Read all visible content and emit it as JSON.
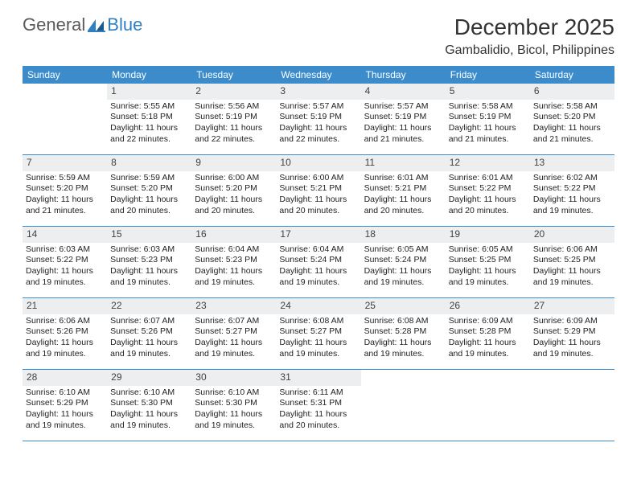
{
  "logo": {
    "general": "General",
    "blue": "Blue"
  },
  "title": "December 2025",
  "location": "Gambalidio, Bicol, Philippines",
  "colors": {
    "header_bg": "#3c8ccc",
    "header_text": "#ffffff",
    "daynum_bg": "#eceeef",
    "text": "#222222",
    "rule": "#3c8ccc",
    "logo_gray": "#5a5a5a",
    "logo_blue": "#2f7fc1"
  },
  "day_names": [
    "Sunday",
    "Monday",
    "Tuesday",
    "Wednesday",
    "Thursday",
    "Friday",
    "Saturday"
  ],
  "weeks": [
    [
      {
        "blank": true
      },
      {
        "n": "1",
        "sr": "Sunrise: 5:55 AM",
        "ss": "Sunset: 5:18 PM",
        "d1": "Daylight: 11 hours",
        "d2": "and 22 minutes."
      },
      {
        "n": "2",
        "sr": "Sunrise: 5:56 AM",
        "ss": "Sunset: 5:19 PM",
        "d1": "Daylight: 11 hours",
        "d2": "and 22 minutes."
      },
      {
        "n": "3",
        "sr": "Sunrise: 5:57 AM",
        "ss": "Sunset: 5:19 PM",
        "d1": "Daylight: 11 hours",
        "d2": "and 22 minutes."
      },
      {
        "n": "4",
        "sr": "Sunrise: 5:57 AM",
        "ss": "Sunset: 5:19 PM",
        "d1": "Daylight: 11 hours",
        "d2": "and 21 minutes."
      },
      {
        "n": "5",
        "sr": "Sunrise: 5:58 AM",
        "ss": "Sunset: 5:19 PM",
        "d1": "Daylight: 11 hours",
        "d2": "and 21 minutes."
      },
      {
        "n": "6",
        "sr": "Sunrise: 5:58 AM",
        "ss": "Sunset: 5:20 PM",
        "d1": "Daylight: 11 hours",
        "d2": "and 21 minutes."
      }
    ],
    [
      {
        "n": "7",
        "sr": "Sunrise: 5:59 AM",
        "ss": "Sunset: 5:20 PM",
        "d1": "Daylight: 11 hours",
        "d2": "and 21 minutes."
      },
      {
        "n": "8",
        "sr": "Sunrise: 5:59 AM",
        "ss": "Sunset: 5:20 PM",
        "d1": "Daylight: 11 hours",
        "d2": "and 20 minutes."
      },
      {
        "n": "9",
        "sr": "Sunrise: 6:00 AM",
        "ss": "Sunset: 5:20 PM",
        "d1": "Daylight: 11 hours",
        "d2": "and 20 minutes."
      },
      {
        "n": "10",
        "sr": "Sunrise: 6:00 AM",
        "ss": "Sunset: 5:21 PM",
        "d1": "Daylight: 11 hours",
        "d2": "and 20 minutes."
      },
      {
        "n": "11",
        "sr": "Sunrise: 6:01 AM",
        "ss": "Sunset: 5:21 PM",
        "d1": "Daylight: 11 hours",
        "d2": "and 20 minutes."
      },
      {
        "n": "12",
        "sr": "Sunrise: 6:01 AM",
        "ss": "Sunset: 5:22 PM",
        "d1": "Daylight: 11 hours",
        "d2": "and 20 minutes."
      },
      {
        "n": "13",
        "sr": "Sunrise: 6:02 AM",
        "ss": "Sunset: 5:22 PM",
        "d1": "Daylight: 11 hours",
        "d2": "and 19 minutes."
      }
    ],
    [
      {
        "n": "14",
        "sr": "Sunrise: 6:03 AM",
        "ss": "Sunset: 5:22 PM",
        "d1": "Daylight: 11 hours",
        "d2": "and 19 minutes."
      },
      {
        "n": "15",
        "sr": "Sunrise: 6:03 AM",
        "ss": "Sunset: 5:23 PM",
        "d1": "Daylight: 11 hours",
        "d2": "and 19 minutes."
      },
      {
        "n": "16",
        "sr": "Sunrise: 6:04 AM",
        "ss": "Sunset: 5:23 PM",
        "d1": "Daylight: 11 hours",
        "d2": "and 19 minutes."
      },
      {
        "n": "17",
        "sr": "Sunrise: 6:04 AM",
        "ss": "Sunset: 5:24 PM",
        "d1": "Daylight: 11 hours",
        "d2": "and 19 minutes."
      },
      {
        "n": "18",
        "sr": "Sunrise: 6:05 AM",
        "ss": "Sunset: 5:24 PM",
        "d1": "Daylight: 11 hours",
        "d2": "and 19 minutes."
      },
      {
        "n": "19",
        "sr": "Sunrise: 6:05 AM",
        "ss": "Sunset: 5:25 PM",
        "d1": "Daylight: 11 hours",
        "d2": "and 19 minutes."
      },
      {
        "n": "20",
        "sr": "Sunrise: 6:06 AM",
        "ss": "Sunset: 5:25 PM",
        "d1": "Daylight: 11 hours",
        "d2": "and 19 minutes."
      }
    ],
    [
      {
        "n": "21",
        "sr": "Sunrise: 6:06 AM",
        "ss": "Sunset: 5:26 PM",
        "d1": "Daylight: 11 hours",
        "d2": "and 19 minutes."
      },
      {
        "n": "22",
        "sr": "Sunrise: 6:07 AM",
        "ss": "Sunset: 5:26 PM",
        "d1": "Daylight: 11 hours",
        "d2": "and 19 minutes."
      },
      {
        "n": "23",
        "sr": "Sunrise: 6:07 AM",
        "ss": "Sunset: 5:27 PM",
        "d1": "Daylight: 11 hours",
        "d2": "and 19 minutes."
      },
      {
        "n": "24",
        "sr": "Sunrise: 6:08 AM",
        "ss": "Sunset: 5:27 PM",
        "d1": "Daylight: 11 hours",
        "d2": "and 19 minutes."
      },
      {
        "n": "25",
        "sr": "Sunrise: 6:08 AM",
        "ss": "Sunset: 5:28 PM",
        "d1": "Daylight: 11 hours",
        "d2": "and 19 minutes."
      },
      {
        "n": "26",
        "sr": "Sunrise: 6:09 AM",
        "ss": "Sunset: 5:28 PM",
        "d1": "Daylight: 11 hours",
        "d2": "and 19 minutes."
      },
      {
        "n": "27",
        "sr": "Sunrise: 6:09 AM",
        "ss": "Sunset: 5:29 PM",
        "d1": "Daylight: 11 hours",
        "d2": "and 19 minutes."
      }
    ],
    [
      {
        "n": "28",
        "sr": "Sunrise: 6:10 AM",
        "ss": "Sunset: 5:29 PM",
        "d1": "Daylight: 11 hours",
        "d2": "and 19 minutes."
      },
      {
        "n": "29",
        "sr": "Sunrise: 6:10 AM",
        "ss": "Sunset: 5:30 PM",
        "d1": "Daylight: 11 hours",
        "d2": "and 19 minutes."
      },
      {
        "n": "30",
        "sr": "Sunrise: 6:10 AM",
        "ss": "Sunset: 5:30 PM",
        "d1": "Daylight: 11 hours",
        "d2": "and 19 minutes."
      },
      {
        "n": "31",
        "sr": "Sunrise: 6:11 AM",
        "ss": "Sunset: 5:31 PM",
        "d1": "Daylight: 11 hours",
        "d2": "and 20 minutes."
      },
      {
        "blank": true
      },
      {
        "blank": true
      },
      {
        "blank": true
      }
    ]
  ]
}
